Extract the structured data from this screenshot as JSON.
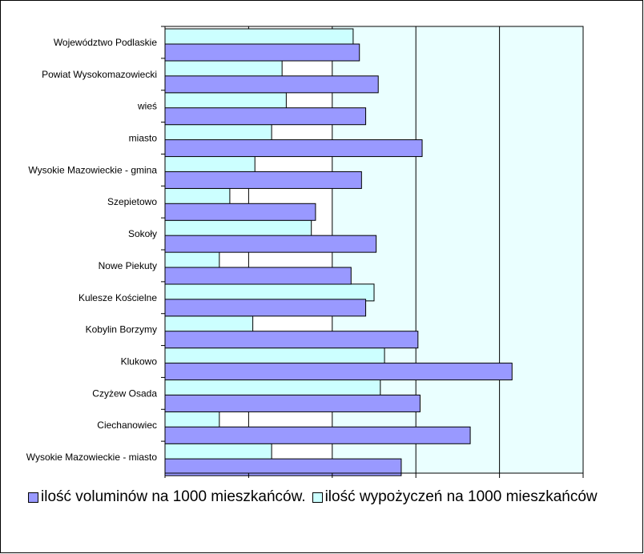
{
  "chart_data": {
    "type": "bar",
    "orientation": "horizontal",
    "categories": [
      "Wysokie Mazowieckie - miasto",
      "Ciechanowiec",
      "Czyżew Osada",
      "Klukowo",
      "Kobylin Borzymy",
      "Kulesze Kościelne",
      "Nowe Piekuty",
      "Sokoły",
      "Szepietowo",
      "Wysokie Mazowieckie - gmina",
      "miasto",
      "wieś",
      "Powiat Wysokomazowiecki",
      "Województwo Podlaskie"
    ],
    "series": [
      {
        "name": "ilość voluminów na 1000 mieszkańców.",
        "color": "#9999ff",
        "values": [
          2825,
          3650,
          3050,
          4150,
          3025,
          2400,
          2225,
          2525,
          1800,
          2350,
          3075,
          2400,
          2550,
          2325
        ]
      },
      {
        "name": "ilość wypożyczeń na 1000 mieszkańców",
        "color": "#ccffff",
        "values": [
          1275,
          650,
          2575,
          2625,
          1050,
          2500,
          650,
          1750,
          775,
          1075,
          1275,
          1450,
          1400,
          2250
        ]
      }
    ],
    "xlim": [
      0,
      5000
    ],
    "xticks": [
      0,
      1000,
      2000,
      3000,
      4000,
      5000
    ],
    "grid": true,
    "legend_position": "bottom",
    "xlabel": "",
    "ylabel": "",
    "title": ""
  }
}
